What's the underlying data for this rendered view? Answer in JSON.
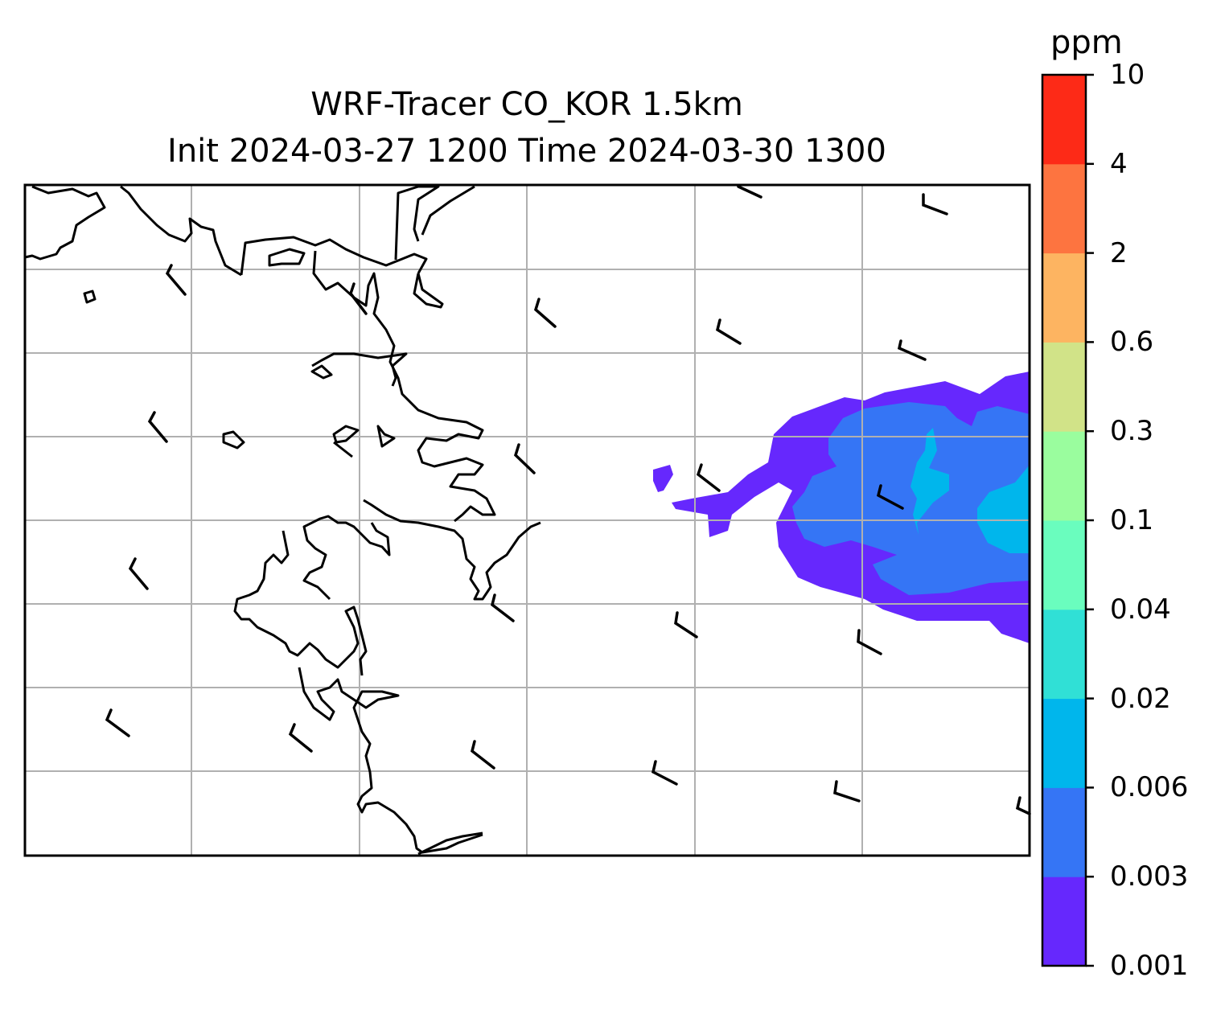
{
  "title": {
    "line1": "WRF-Tracer CO_KOR 1.5km",
    "line2": "Init 2024-03-27 1200 Time 2024-03-30 1300"
  },
  "colorbar": {
    "unit": "ppm",
    "levels": [
      "0.001",
      "0.003",
      "0.006",
      "0.02",
      "0.04",
      "0.1",
      "0.3",
      "0.6",
      "2",
      "4",
      "10"
    ],
    "colors": [
      "#6628fd",
      "#3575f5",
      "#00b6ec",
      "#30e0d6",
      "#6afdbe",
      "#9afd9e",
      "#d1e388",
      "#fdb461",
      "#fd7440",
      "#fd2a17"
    ]
  },
  "map": {
    "gridlines": true,
    "frame_color": "#000000",
    "grid_color": "#b0b0b0"
  },
  "wind_barbs": [
    {
      "name": "barb-r1-a"
    },
    {
      "name": "barb-r1-b"
    },
    {
      "name": "barb-r1-c"
    },
    {
      "name": "barb-r1-d"
    },
    {
      "name": "barb-r1-e"
    },
    {
      "name": "barb-r1-f"
    }
  ]
}
